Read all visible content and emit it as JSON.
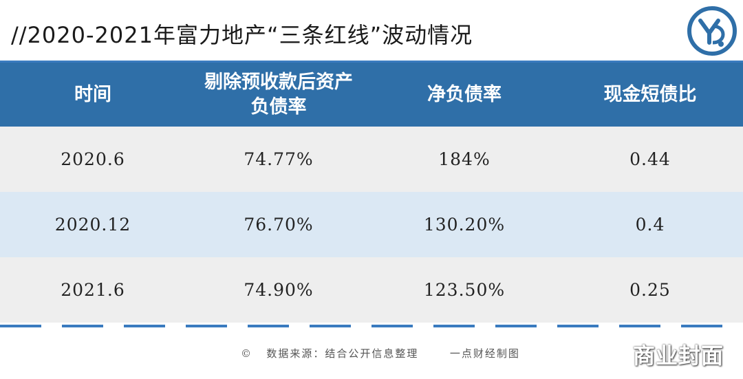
{
  "title": "//2020-2021年富力地产“三条红线”波动情况",
  "table": {
    "headers": [
      "时间",
      "剔除预收款后资产\n负债率",
      "净负债率",
      "现金短债比"
    ],
    "rows": [
      [
        "2020.6",
        "74.77%",
        "184%",
        "0.44"
      ],
      [
        "2020.12",
        "76.70%",
        "130.20%",
        "0.4"
      ],
      [
        "2021.6",
        "74.90%",
        "123.50%",
        "0.25"
      ]
    ]
  },
  "footer": {
    "copyright": "©",
    "source": "数据来源：结合公开信息整理",
    "credit": "一点财经制图"
  },
  "watermark": "商业封面",
  "colors": {
    "header_bg": "#2f6fa8",
    "row_odd": "#eeeeee",
    "row_even": "#dbe8f4",
    "accent": "#3a7bbf"
  }
}
